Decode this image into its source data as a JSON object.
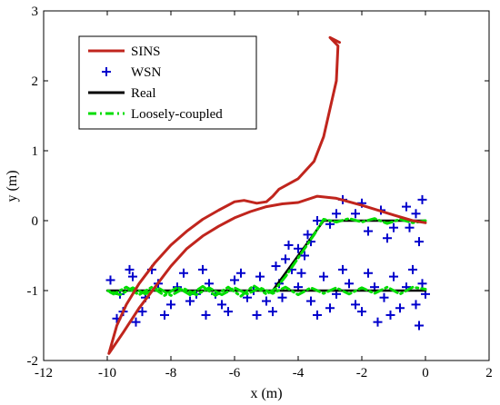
{
  "chart_data": {
    "type": "line",
    "title": "",
    "xlabel": "x (m)",
    "ylabel": "y (m)",
    "xlim": [
      -12,
      2
    ],
    "ylim": [
      -2,
      3
    ],
    "xticks": [
      -12,
      -10,
      -8,
      -6,
      -4,
      -2,
      0,
      2
    ],
    "yticks": [
      -2,
      -1,
      0,
      1,
      2,
      3
    ],
    "xtick_labels": [
      "-12",
      "-10",
      "-8",
      "-6",
      "-4",
      "-2",
      "0",
      "2"
    ],
    "ytick_labels": [
      "-2",
      "-1",
      "0",
      "1",
      "2",
      "3"
    ],
    "grid": false,
    "legend_position": "top-left",
    "series": [
      {
        "name": "SINS",
        "style": "line",
        "color": "#c0251d",
        "points": [
          [
            -2.7,
            2.55
          ],
          [
            -3.0,
            2.62
          ],
          [
            -2.75,
            2.5
          ],
          [
            -2.8,
            2.0
          ],
          [
            -3.0,
            1.6
          ],
          [
            -3.2,
            1.2
          ],
          [
            -3.5,
            0.85
          ],
          [
            -4.0,
            0.6
          ],
          [
            -4.6,
            0.45
          ],
          [
            -4.8,
            0.35
          ],
          [
            -5.0,
            0.27
          ],
          [
            -5.3,
            0.25
          ],
          [
            -5.7,
            0.29
          ],
          [
            -6.0,
            0.27
          ],
          [
            -6.5,
            0.15
          ],
          [
            -7.0,
            0.02
          ],
          [
            -7.5,
            -0.15
          ],
          [
            -8.0,
            -0.35
          ],
          [
            -8.5,
            -0.6
          ],
          [
            -9.0,
            -0.9
          ],
          [
            -9.4,
            -1.2
          ],
          [
            -9.7,
            -1.5
          ],
          [
            -9.95,
            -1.9
          ],
          [
            -9.5,
            -1.6
          ],
          [
            -9.0,
            -1.25
          ],
          [
            -8.5,
            -0.95
          ],
          [
            -8.0,
            -0.65
          ],
          [
            -7.5,
            -0.4
          ],
          [
            -7.0,
            -0.22
          ],
          [
            -6.5,
            -0.08
          ],
          [
            -6.0,
            0.04
          ],
          [
            -5.5,
            0.13
          ],
          [
            -5.0,
            0.2
          ],
          [
            -4.5,
            0.24
          ],
          [
            -4.0,
            0.26
          ],
          [
            -3.4,
            0.35
          ],
          [
            -2.8,
            0.32
          ],
          [
            -2.0,
            0.22
          ],
          [
            -1.0,
            0.08
          ],
          [
            -0.4,
            0.0
          ],
          [
            0.0,
            -0.03
          ]
        ]
      },
      {
        "name": "WSN",
        "style": "markers-plus",
        "color": "#0000cc",
        "points": [
          [
            -0.1,
            0.3
          ],
          [
            -0.3,
            0.1
          ],
          [
            -0.6,
            0.2
          ],
          [
            -1.0,
            -0.1
          ],
          [
            -1.4,
            0.15
          ],
          [
            -1.8,
            -0.15
          ],
          [
            -2.2,
            0.1
          ],
          [
            -2.6,
            0.3
          ],
          [
            -3.0,
            -0.05
          ],
          [
            -3.4,
            0.0
          ],
          [
            -0.2,
            -0.3
          ],
          [
            -0.5,
            -0.1
          ],
          [
            -1.2,
            -0.25
          ],
          [
            -2.0,
            0.25
          ],
          [
            -2.8,
            0.1
          ],
          [
            -3.6,
            -0.3
          ],
          [
            -3.8,
            -0.5
          ],
          [
            -4.0,
            -0.4
          ],
          [
            -4.2,
            -0.7
          ],
          [
            -4.4,
            -0.55
          ],
          [
            -4.6,
            -0.9
          ],
          [
            -3.7,
            -0.2
          ],
          [
            -3.9,
            -0.75
          ],
          [
            -4.3,
            -0.35
          ],
          [
            -4.5,
            -1.1
          ],
          [
            -0.1,
            -0.9
          ],
          [
            -0.3,
            -1.2
          ],
          [
            -0.6,
            -0.95
          ],
          [
            -1.0,
            -0.8
          ],
          [
            -1.3,
            -1.1
          ],
          [
            -1.6,
            -0.95
          ],
          [
            -2.0,
            -1.3
          ],
          [
            -2.4,
            -0.9
          ],
          [
            -2.8,
            -1.05
          ],
          [
            -3.2,
            -0.8
          ],
          [
            -3.6,
            -1.15
          ],
          [
            -4.0,
            -0.95
          ],
          [
            -4.8,
            -1.3
          ],
          [
            -5.2,
            -0.8
          ],
          [
            -5.6,
            -1.1
          ],
          [
            -6.0,
            -0.85
          ],
          [
            -6.4,
            -1.2
          ],
          [
            -6.8,
            -0.9
          ],
          [
            -7.2,
            -1.05
          ],
          [
            -7.6,
            -0.75
          ],
          [
            -8.0,
            -1.2
          ],
          [
            -8.4,
            -0.9
          ],
          [
            -8.8,
            -1.1
          ],
          [
            -9.2,
            -0.8
          ],
          [
            -9.6,
            -1.05
          ],
          [
            -9.9,
            -0.85
          ],
          [
            -9.5,
            -1.3
          ],
          [
            -9.1,
            -1.45
          ],
          [
            -8.6,
            -0.7
          ],
          [
            -8.2,
            -1.35
          ],
          [
            -7.8,
            -0.95
          ],
          [
            -7.4,
            -1.15
          ],
          [
            -7.0,
            -0.7
          ],
          [
            -6.6,
            -1.05
          ],
          [
            -6.2,
            -1.3
          ],
          [
            -5.8,
            -0.75
          ],
          [
            -5.4,
            -1.0
          ],
          [
            -5.0,
            -1.15
          ],
          [
            -4.7,
            -0.65
          ],
          [
            -3.4,
            -1.35
          ],
          [
            -3.0,
            -1.25
          ],
          [
            -2.2,
            -1.2
          ],
          [
            -1.8,
            -0.75
          ],
          [
            -1.1,
            -1.35
          ],
          [
            -0.8,
            -1.25
          ],
          [
            -0.4,
            -0.7
          ],
          [
            -0.2,
            -1.5
          ],
          [
            0.0,
            -1.05
          ],
          [
            -9.7,
            -1.4
          ],
          [
            -9.3,
            -0.7
          ],
          [
            -8.9,
            -1.3
          ],
          [
            -6.9,
            -1.35
          ],
          [
            -5.3,
            -1.35
          ],
          [
            -2.6,
            -0.7
          ],
          [
            -1.5,
            -1.45
          ]
        ]
      },
      {
        "name": "Real",
        "style": "line",
        "color": "#000000",
        "points": [
          [
            0.0,
            0.0
          ],
          [
            -3.2,
            0.0
          ],
          [
            -4.8,
            -1.0
          ],
          [
            -10.0,
            -1.0
          ],
          [
            -4.8,
            -1.0
          ],
          [
            0.0,
            -1.0
          ]
        ]
      },
      {
        "name": "Loosely-coupled",
        "style": "dash-dot",
        "color": "#00dd00",
        "points": [
          [
            0.0,
            0.0
          ],
          [
            -0.4,
            -0.03
          ],
          [
            -0.8,
            0.02
          ],
          [
            -1.2,
            -0.04
          ],
          [
            -1.6,
            0.03
          ],
          [
            -2.0,
            -0.02
          ],
          [
            -2.4,
            0.03
          ],
          [
            -2.8,
            -0.02
          ],
          [
            -3.2,
            0.02
          ],
          [
            -3.5,
            -0.2
          ],
          [
            -3.8,
            -0.4
          ],
          [
            -4.1,
            -0.6
          ],
          [
            -4.4,
            -0.8
          ],
          [
            -4.7,
            -0.97
          ],
          [
            -5.0,
            -1.05
          ],
          [
            -5.4,
            -0.93
          ],
          [
            -5.8,
            -1.08
          ],
          [
            -6.2,
            -0.95
          ],
          [
            -6.6,
            -1.07
          ],
          [
            -7.0,
            -0.94
          ],
          [
            -7.4,
            -1.06
          ],
          [
            -7.8,
            -0.95
          ],
          [
            -8.2,
            -1.07
          ],
          [
            -8.6,
            -0.95
          ],
          [
            -9.0,
            -1.06
          ],
          [
            -9.4,
            -0.95
          ],
          [
            -9.8,
            -1.05
          ],
          [
            -10.0,
            -1.0
          ],
          [
            -9.6,
            -1.06
          ],
          [
            -9.2,
            -0.96
          ],
          [
            -8.8,
            -1.05
          ],
          [
            -8.4,
            -0.96
          ],
          [
            -8.0,
            -1.07
          ],
          [
            -7.6,
            -0.97
          ],
          [
            -7.2,
            -1.06
          ],
          [
            -6.8,
            -0.96
          ],
          [
            -6.4,
            -1.06
          ],
          [
            -6.0,
            -0.96
          ],
          [
            -5.6,
            -1.05
          ],
          [
            -5.2,
            -0.96
          ],
          [
            -4.8,
            -1.04
          ],
          [
            -4.4,
            -0.95
          ],
          [
            -4.0,
            -1.06
          ],
          [
            -3.6,
            -0.96
          ],
          [
            -3.2,
            -1.04
          ],
          [
            -2.8,
            -0.96
          ],
          [
            -2.4,
            -1.05
          ],
          [
            -2.0,
            -0.96
          ],
          [
            -1.6,
            -1.04
          ],
          [
            -1.2,
            -0.95
          ],
          [
            -0.8,
            -1.05
          ],
          [
            -0.4,
            -0.95
          ],
          [
            0.0,
            -0.98
          ]
        ]
      }
    ]
  }
}
